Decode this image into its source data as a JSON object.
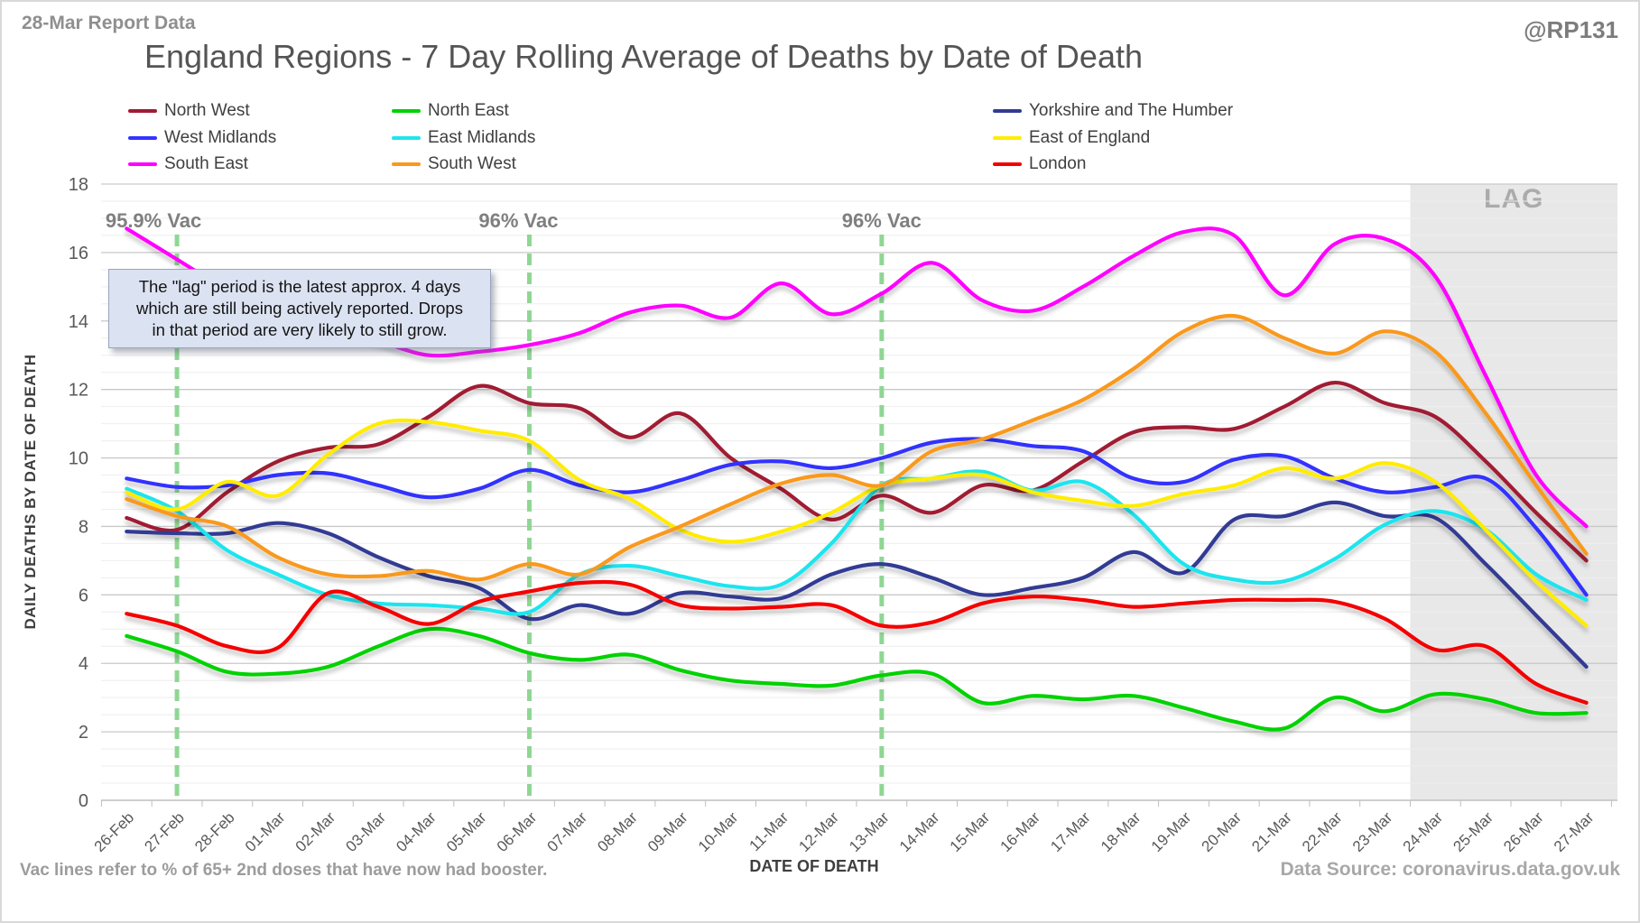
{
  "header": {
    "report_label": "28-Mar Report Data",
    "handle": "@RP131"
  },
  "title": "England Regions - 7 Day Rolling Average of Deaths by Date of Death",
  "annotation": {
    "lines": [
      "The \"lag\" period is the latest approx. 4 days",
      "which are still being actively reported.  Drops",
      "in that period are very likely to still grow."
    ]
  },
  "footer": {
    "left_note": "Vac lines refer to % of 65+ 2nd doses that have now had booster.",
    "source": "Data Source: coronavirus.data.gov.uk"
  },
  "chart_data": {
    "type": "line",
    "title": "England Regions - 7 Day Rolling Average of Deaths by Date of Death",
    "xlabel": "DATE OF DEATH",
    "ylabel": "DAILY DEATHS BY DATE OF DEATH",
    "ylim": [
      0,
      18
    ],
    "ytick_step": 2,
    "y_minor_step": 0.5,
    "grid": "on",
    "legend_position": "top",
    "categories": [
      "26-Feb",
      "27-Feb",
      "28-Feb",
      "01-Mar",
      "02-Mar",
      "03-Mar",
      "04-Mar",
      "05-Mar",
      "06-Mar",
      "07-Mar",
      "08-Mar",
      "09-Mar",
      "10-Mar",
      "11-Mar",
      "12-Mar",
      "13-Mar",
      "14-Mar",
      "15-Mar",
      "16-Mar",
      "17-Mar",
      "18-Mar",
      "19-Mar",
      "20-Mar",
      "21-Mar",
      "22-Mar",
      "23-Mar",
      "24-Mar",
      "25-Mar",
      "26-Mar",
      "27-Mar"
    ],
    "series": [
      {
        "name": "North West",
        "color": "#A01A33",
        "values": [
          8.25,
          7.9,
          9.0,
          9.9,
          10.3,
          10.4,
          11.2,
          12.1,
          11.6,
          11.45,
          10.6,
          11.3,
          10.0,
          9.1,
          8.2,
          8.9,
          8.4,
          9.2,
          9.05,
          9.9,
          10.75,
          10.9,
          10.85,
          11.5,
          12.2,
          11.6,
          11.2,
          9.9,
          8.4,
          7.0
        ]
      },
      {
        "name": "North East",
        "color": "#00D200",
        "values": [
          4.8,
          4.35,
          3.75,
          3.7,
          3.9,
          4.5,
          5.0,
          4.8,
          4.3,
          4.1,
          4.25,
          3.8,
          3.5,
          3.4,
          3.35,
          3.65,
          3.7,
          2.85,
          3.05,
          2.95,
          3.05,
          2.7,
          2.3,
          2.1,
          3.0,
          2.6,
          3.1,
          2.95,
          2.55,
          2.55
        ]
      },
      {
        "name": "Yorkshire and The Humber",
        "color": "#333A94",
        "values": [
          7.85,
          7.8,
          7.8,
          8.1,
          7.8,
          7.1,
          6.55,
          6.2,
          5.3,
          5.7,
          5.45,
          6.05,
          5.95,
          5.9,
          6.6,
          6.9,
          6.5,
          6.0,
          6.2,
          6.5,
          7.25,
          6.65,
          8.2,
          8.3,
          8.7,
          8.3,
          8.25,
          6.9,
          5.4,
          3.9
        ]
      },
      {
        "name": "West Midlands",
        "color": "#3333FF",
        "values": [
          9.4,
          9.15,
          9.2,
          9.5,
          9.55,
          9.2,
          8.85,
          9.1,
          9.65,
          9.2,
          9.0,
          9.35,
          9.8,
          9.9,
          9.7,
          10.0,
          10.45,
          10.55,
          10.35,
          10.2,
          9.4,
          9.3,
          9.95,
          10.05,
          9.4,
          9.0,
          9.15,
          9.4,
          7.95,
          6.0
        ]
      },
      {
        "name": "East Midlands",
        "color": "#1FE5EE",
        "values": [
          9.1,
          8.45,
          7.3,
          6.6,
          6.0,
          5.75,
          5.7,
          5.6,
          5.5,
          6.6,
          6.85,
          6.55,
          6.25,
          6.3,
          7.5,
          9.2,
          9.4,
          9.6,
          9.05,
          9.3,
          8.35,
          6.9,
          6.45,
          6.4,
          7.05,
          8.05,
          8.45,
          7.9,
          6.6,
          5.85
        ]
      },
      {
        "name": "East of England",
        "color": "#FFEC00",
        "values": [
          9.0,
          8.5,
          9.3,
          8.9,
          10.1,
          11.0,
          11.05,
          10.8,
          10.5,
          9.35,
          8.8,
          7.9,
          7.55,
          7.85,
          8.4,
          9.2,
          9.4,
          9.5,
          9.0,
          8.75,
          8.6,
          8.95,
          9.2,
          9.7,
          9.4,
          9.85,
          9.3,
          7.9,
          6.4,
          5.1
        ]
      },
      {
        "name": "South East",
        "color": "#FF00FF",
        "values": [
          16.7,
          15.8,
          14.9,
          14.2,
          13.7,
          13.4,
          13.0,
          13.1,
          13.3,
          13.65,
          14.25,
          14.45,
          14.1,
          15.1,
          14.2,
          14.8,
          15.7,
          14.6,
          14.3,
          15.0,
          15.9,
          16.6,
          16.5,
          14.75,
          16.25,
          16.4,
          15.3,
          12.4,
          9.5,
          8.0
        ]
      },
      {
        "name": "South West",
        "color": "#F9991C",
        "values": [
          8.8,
          8.3,
          8.0,
          7.1,
          6.6,
          6.55,
          6.7,
          6.45,
          6.9,
          6.6,
          7.4,
          8.0,
          8.65,
          9.25,
          9.5,
          9.2,
          10.2,
          10.55,
          11.1,
          11.7,
          12.6,
          13.7,
          14.15,
          13.5,
          13.05,
          13.7,
          13.1,
          11.3,
          9.2,
          7.2
        ]
      },
      {
        "name": "London",
        "color": "#F40000",
        "values": [
          5.45,
          5.1,
          4.5,
          4.45,
          6.05,
          5.65,
          5.15,
          5.8,
          6.1,
          6.35,
          6.3,
          5.7,
          5.6,
          5.65,
          5.7,
          5.1,
          5.2,
          5.75,
          5.95,
          5.85,
          5.65,
          5.75,
          5.85,
          5.85,
          5.8,
          5.3,
          4.4,
          4.5,
          3.4,
          2.85
        ]
      }
    ],
    "vac_lines": [
      {
        "at": "27-Feb",
        "label": "95.9% Vac"
      },
      {
        "at": "06-Mar",
        "label": "96% Vac"
      },
      {
        "at": "13-Mar",
        "label": "96% Vac"
      }
    ],
    "lag_region": {
      "from": "24-Mar",
      "label": "LAG"
    },
    "colors": {
      "vac_line": "#8FD694",
      "lag_fill": "#E8E8E8",
      "lag_label": "#ABABAB",
      "grid_minor": "#EEEEEE",
      "grid_major": "#C9C9C9",
      "axis_line": "#BFBFBF",
      "tick_label": "#595959",
      "vac_label": "#7F7F7F"
    }
  }
}
